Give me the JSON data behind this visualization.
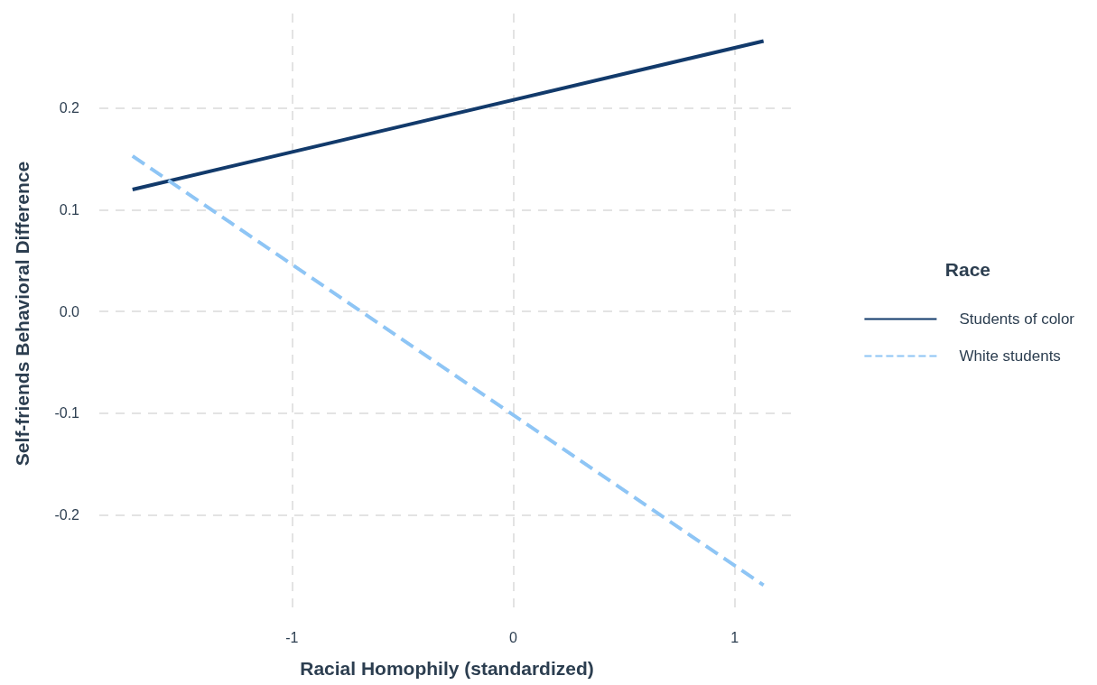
{
  "chart_data": {
    "type": "line",
    "xlabel": "Racial Homophily (standardized)",
    "ylabel": "Self-friends Behavioral Difference",
    "legend_title": "Race",
    "x": [
      -1.72,
      1.13
    ],
    "series": [
      {
        "name": "Students of color",
        "color": "#123a6b",
        "values": [
          0.12,
          0.266
        ],
        "line_style": "solid"
      },
      {
        "name": "White students",
        "color": "#8ec5f5",
        "values": [
          0.153,
          -0.269
        ],
        "line_style": "dashed"
      }
    ],
    "xlim": [
      -1.87,
      1.27
    ],
    "xticks": [
      -1,
      0,
      1
    ],
    "ylim": [
      -0.297,
      0.293
    ],
    "yticks": [
      {
        "value": -0.2,
        "label": "-0.2"
      },
      {
        "value": -0.1,
        "label": "-0.1"
      },
      {
        "value": 0,
        "label": "0.0"
      },
      {
        "value": 0.1,
        "label": "0.1"
      },
      {
        "value": 0.2,
        "label": "0.2"
      }
    ],
    "grid": true,
    "legend": "right",
    "marker": "none"
  }
}
